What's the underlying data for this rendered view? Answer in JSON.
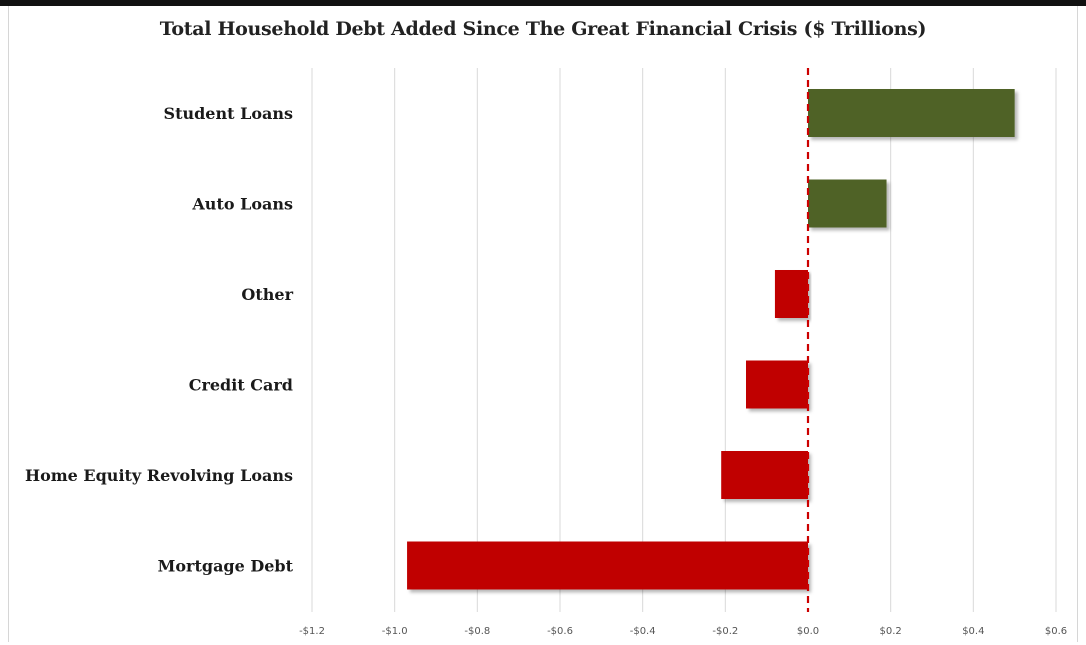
{
  "chart_data": {
    "type": "bar",
    "orientation": "horizontal",
    "title": "Total Household Debt Added Since The Great Financial Crisis ($ Trillions)",
    "xlabel": "",
    "ylabel": "",
    "categories": [
      "Student Loans",
      "Auto Loans",
      "Other",
      "Credit Card",
      "Home Equity Revolving Loans",
      "Mortgage  Debt"
    ],
    "values": [
      0.5,
      0.19,
      -0.08,
      -0.15,
      -0.21,
      -0.97
    ],
    "xlim": [
      -1.2,
      0.6
    ],
    "x_ticks": [
      -1.2,
      -1.0,
      -0.8,
      -0.6,
      -0.4,
      -0.2,
      0.0,
      0.2,
      0.4,
      0.6
    ],
    "x_tick_labels": [
      "-$1.2",
      "-$1.0",
      "-$0.8",
      "-$0.6",
      "-$0.4",
      "-$0.2",
      "$0.0",
      "$0.2",
      "$0.4",
      "$0.6"
    ],
    "grid": "vertical",
    "zero_line": "red dashed",
    "colors": {
      "positive": "#4f6228",
      "negative": "#c00000",
      "zero_line": "#cc0000",
      "grid": "#d9d9d9"
    }
  }
}
